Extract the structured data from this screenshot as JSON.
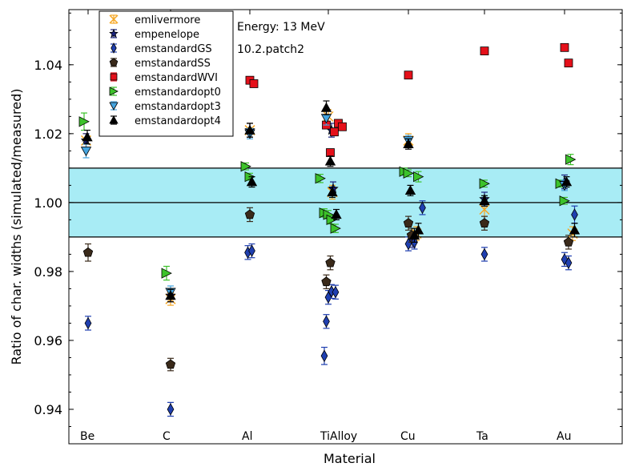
{
  "chart_data": {
    "type": "scatter",
    "xlabel": "Material",
    "ylabel": "Ratio of char. widths (simulated/measured)",
    "categories": [
      "Be",
      "C",
      "Al",
      "TiAlloy",
      "Cu",
      "Ta",
      "Au"
    ],
    "ylim": [
      0.93,
      1.056
    ],
    "yticks": [
      "0.94",
      "0.96",
      "0.98",
      "1.00",
      "1.02",
      "1.04"
    ],
    "grid": false,
    "legend_position": "top-left",
    "annotations": [
      "Energy: 13 MeV",
      "10.2.patch2"
    ],
    "band": {
      "low": 0.99,
      "high": 1.01,
      "center": 1.0,
      "color": "#a8ecf5"
    },
    "series": [
      {
        "name": "emlivermore",
        "marker": "x",
        "color": "#f5a623",
        "points": [
          {
            "cat": "Be",
            "offset": -0.05,
            "y": 1.018,
            "err": 0.002
          },
          {
            "cat": "C",
            "offset": 0.0,
            "y": 0.972,
            "err": 0.0018
          },
          {
            "cat": "Al",
            "offset": 0.0,
            "y": 1.021,
            "err": 0.002
          },
          {
            "cat": "TiAlloy",
            "offset": 0.0,
            "y": 1.025,
            "err": 0.002
          },
          {
            "cat": "TiAlloy",
            "offset": 0.1,
            "y": 1.003,
            "err": 0.002
          },
          {
            "cat": "Cu",
            "offset": 0.0,
            "y": 1.018,
            "err": 0.002
          },
          {
            "cat": "Cu",
            "offset": 0.2,
            "y": 0.991,
            "err": 0.002
          },
          {
            "cat": "Ta",
            "offset": 0.0,
            "y": 0.998,
            "err": 0.002
          },
          {
            "cat": "Au",
            "offset": 0.2,
            "y": 0.991,
            "err": 0.002
          }
        ]
      },
      {
        "name": "empenelope",
        "marker": "star",
        "color": "#1a237e",
        "points": [
          {
            "cat": "Be",
            "offset": -0.05,
            "y": 1.018,
            "err": 0.002
          },
          {
            "cat": "C",
            "offset": 0.0,
            "y": 0.973,
            "err": 0.0018
          },
          {
            "cat": "Al",
            "offset": 0.0,
            "y": 1.021,
            "err": 0.002
          },
          {
            "cat": "TiAlloy",
            "offset": 0.08,
            "y": 1.021,
            "err": 0.002
          },
          {
            "cat": "TiAlloy",
            "offset": 0.12,
            "y": 1.004,
            "err": 0.002
          },
          {
            "cat": "Cu",
            "offset": 0.1,
            "y": 0.989,
            "err": 0.002
          },
          {
            "cat": "Ta",
            "offset": 0.0,
            "y": 1.001,
            "err": 0.002
          },
          {
            "cat": "Au",
            "offset": 0.0,
            "y": 1.006,
            "err": 0.002
          }
        ]
      },
      {
        "name": "emstandardGS",
        "marker": "diamond",
        "color": "#1f3fb0",
        "points": [
          {
            "cat": "Be",
            "offset": 0.0,
            "y": 0.965,
            "err": 0.002
          },
          {
            "cat": "C",
            "offset": 0.0,
            "y": 0.94,
            "err": 0.002
          },
          {
            "cat": "Al",
            "offset": -0.05,
            "y": 0.9855,
            "err": 0.002
          },
          {
            "cat": "Al",
            "offset": 0.05,
            "y": 0.986,
            "err": 0.002
          },
          {
            "cat": "TiAlloy",
            "offset": -0.1,
            "y": 0.9555,
            "err": 0.0025
          },
          {
            "cat": "TiAlloy",
            "offset": -0.05,
            "y": 0.9655,
            "err": 0.002
          },
          {
            "cat": "TiAlloy",
            "offset": 0.0,
            "y": 0.9725,
            "err": 0.002
          },
          {
            "cat": "TiAlloy",
            "offset": 0.08,
            "y": 0.9742,
            "err": 0.002
          },
          {
            "cat": "TiAlloy",
            "offset": 0.18,
            "y": 0.974,
            "err": 0.002
          },
          {
            "cat": "Cu",
            "offset": 0.0,
            "y": 0.988,
            "err": 0.002
          },
          {
            "cat": "Cu",
            "offset": 0.15,
            "y": 0.9885,
            "err": 0.002
          },
          {
            "cat": "Cu",
            "offset": 0.35,
            "y": 0.9985,
            "err": 0.002
          },
          {
            "cat": "Ta",
            "offset": 0.0,
            "y": 0.985,
            "err": 0.002
          },
          {
            "cat": "Au",
            "offset": 0.0,
            "y": 0.9835,
            "err": 0.002
          },
          {
            "cat": "Au",
            "offset": 0.1,
            "y": 0.9825,
            "err": 0.002
          },
          {
            "cat": "Au",
            "offset": 0.25,
            "y": 0.9965,
            "err": 0.0025
          }
        ]
      },
      {
        "name": "emstandardSS",
        "marker": "pentagon",
        "color": "#3a2a1a",
        "points": [
          {
            "cat": "Be",
            "offset": 0.0,
            "y": 0.9855,
            "err": 0.0025
          },
          {
            "cat": "C",
            "offset": 0.0,
            "y": 0.953,
            "err": 0.0018
          },
          {
            "cat": "Al",
            "offset": 0.0,
            "y": 0.9965,
            "err": 0.002
          },
          {
            "cat": "TiAlloy",
            "offset": -0.05,
            "y": 0.977,
            "err": 0.002
          },
          {
            "cat": "TiAlloy",
            "offset": 0.05,
            "y": 0.9825,
            "err": 0.002
          },
          {
            "cat": "Cu",
            "offset": 0.0,
            "y": 0.994,
            "err": 0.002
          },
          {
            "cat": "Cu",
            "offset": 0.08,
            "y": 0.9905,
            "err": 0.002
          },
          {
            "cat": "Ta",
            "offset": 0.0,
            "y": 0.994,
            "err": 0.002
          },
          {
            "cat": "Au",
            "offset": 0.1,
            "y": 0.9885,
            "err": 0.002
          }
        ]
      },
      {
        "name": "emstandardWVI",
        "marker": "square",
        "color": "#e5101a",
        "points": [
          {
            "cat": "Al",
            "offset": 0.0,
            "y": 1.0355,
            "err": 0.001
          },
          {
            "cat": "Al",
            "offset": 0.1,
            "y": 1.0345,
            "err": 0.001
          },
          {
            "cat": "TiAlloy",
            "offset": -0.05,
            "y": 1.0225,
            "err": 0.001
          },
          {
            "cat": "TiAlloy",
            "offset": 0.05,
            "y": 1.0145,
            "err": 0.001
          },
          {
            "cat": "TiAlloy",
            "offset": 0.15,
            "y": 1.0205,
            "err": 0.001
          },
          {
            "cat": "TiAlloy",
            "offset": 0.25,
            "y": 1.023,
            "err": 0.001
          },
          {
            "cat": "TiAlloy",
            "offset": 0.35,
            "y": 1.022,
            "err": 0.001
          },
          {
            "cat": "Cu",
            "offset": 0.0,
            "y": 1.037,
            "err": 0.001
          },
          {
            "cat": "Ta",
            "offset": 0.0,
            "y": 1.044,
            "err": 0.001
          },
          {
            "cat": "Au",
            "offset": 0.0,
            "y": 1.045,
            "err": 0.001
          },
          {
            "cat": "Au",
            "offset": 0.1,
            "y": 1.0405,
            "err": 0.001
          }
        ]
      },
      {
        "name": "emstandardopt0",
        "marker": "triangle-right",
        "color": "#3cc22a",
        "points": [
          {
            "cat": "Be",
            "offset": -0.1,
            "y": 1.0235,
            "err": 0.0025
          },
          {
            "cat": "C",
            "offset": -0.1,
            "y": 0.9795,
            "err": 0.002
          },
          {
            "cat": "Al",
            "offset": -0.1,
            "y": 1.0105,
            "err": 0.001
          },
          {
            "cat": "Al",
            "offset": 0.0,
            "y": 1.0075,
            "err": 0.001
          },
          {
            "cat": "TiAlloy",
            "offset": -0.2,
            "y": 1.007,
            "err": 0.0012
          },
          {
            "cat": "TiAlloy",
            "offset": -0.1,
            "y": 0.997,
            "err": 0.0012
          },
          {
            "cat": "TiAlloy",
            "offset": 0.0,
            "y": 0.9965,
            "err": 0.0012
          },
          {
            "cat": "TiAlloy",
            "offset": 0.08,
            "y": 0.995,
            "err": 0.0012
          },
          {
            "cat": "TiAlloy",
            "offset": 0.18,
            "y": 0.9925,
            "err": 0.0012
          },
          {
            "cat": "Cu",
            "offset": -0.1,
            "y": 1.009,
            "err": 0.001
          },
          {
            "cat": "Cu",
            "offset": 0.0,
            "y": 1.0085,
            "err": 0.001
          },
          {
            "cat": "Cu",
            "offset": 0.25,
            "y": 1.0075,
            "err": 0.0015
          },
          {
            "cat": "Ta",
            "offset": 0.0,
            "y": 1.0055,
            "err": 0.001
          },
          {
            "cat": "Au",
            "offset": -0.1,
            "y": 1.0055,
            "err": 0.001
          },
          {
            "cat": "Au",
            "offset": 0.0,
            "y": 1.0005,
            "err": 0.001
          },
          {
            "cat": "Au",
            "offset": 0.15,
            "y": 1.0125,
            "err": 0.0015
          }
        ]
      },
      {
        "name": "emstandardopt3",
        "marker": "triangle-down",
        "color": "#45a5e0",
        "points": [
          {
            "cat": "Be",
            "offset": -0.05,
            "y": 1.015,
            "err": 0.002
          },
          {
            "cat": "C",
            "offset": 0.0,
            "y": 0.974,
            "err": 0.0018
          },
          {
            "cat": "Al",
            "offset": 0.0,
            "y": 1.02,
            "err": 0.0015
          },
          {
            "cat": "TiAlloy",
            "offset": -0.05,
            "y": 1.0245,
            "err": 0.002
          },
          {
            "cat": "Cu",
            "offset": 0.0,
            "y": 1.018,
            "err": 0.0015
          },
          {
            "cat": "Au",
            "offset": 0.0,
            "y": 1.005,
            "err": 0.0015
          }
        ]
      },
      {
        "name": "emstandardopt4",
        "marker": "triangle-up",
        "color": "#000000",
        "points": [
          {
            "cat": "Be",
            "offset": -0.02,
            "y": 1.019,
            "err": 0.002
          },
          {
            "cat": "C",
            "offset": 0.0,
            "y": 0.973,
            "err": 0.0018
          },
          {
            "cat": "Al",
            "offset": 0.0,
            "y": 1.021,
            "err": 0.002
          },
          {
            "cat": "Al",
            "offset": 0.05,
            "y": 1.006,
            "err": 0.0015
          },
          {
            "cat": "TiAlloy",
            "offset": -0.05,
            "y": 1.0275,
            "err": 0.002
          },
          {
            "cat": "TiAlloy",
            "offset": 0.05,
            "y": 1.012,
            "err": 0.0015
          },
          {
            "cat": "TiAlloy",
            "offset": 0.1,
            "y": 1.003,
            "err": 0.0015
          },
          {
            "cat": "TiAlloy",
            "offset": 0.2,
            "y": 0.9965,
            "err": 0.0015
          },
          {
            "cat": "Cu",
            "offset": 0.0,
            "y": 1.017,
            "err": 0.0015
          },
          {
            "cat": "Cu",
            "offset": 0.05,
            "y": 1.0035,
            "err": 0.0015
          },
          {
            "cat": "Cu",
            "offset": 0.15,
            "y": 0.9905,
            "err": 0.002
          },
          {
            "cat": "Cu",
            "offset": 0.25,
            "y": 0.992,
            "err": 0.002
          },
          {
            "cat": "Ta",
            "offset": 0.0,
            "y": 1.0005,
            "err": 0.0015
          },
          {
            "cat": "Au",
            "offset": 0.05,
            "y": 1.006,
            "err": 0.0015
          },
          {
            "cat": "Au",
            "offset": 0.25,
            "y": 0.992,
            "err": 0.002
          }
        ]
      }
    ]
  }
}
